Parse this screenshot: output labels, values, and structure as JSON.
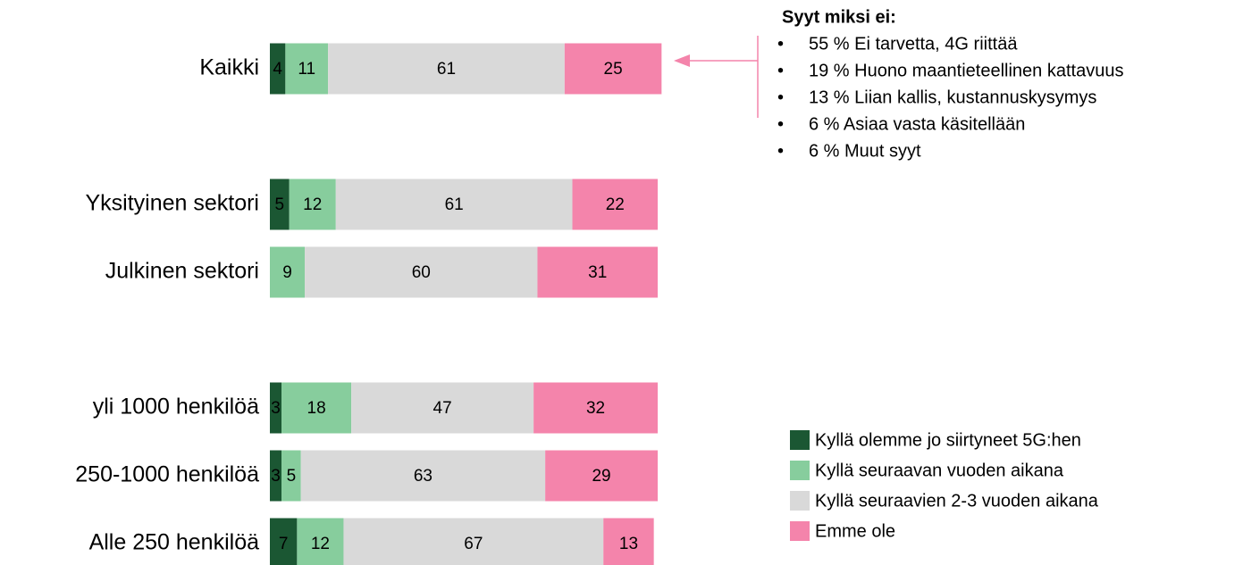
{
  "chart_data": {
    "type": "stacked-bar-horizontal",
    "categories": [
      "Kaikki",
      null,
      "Yksityinen sektori",
      "Julkinen sektori",
      null,
      "yli 1000 henkilöä",
      "250-1000 henkilöä",
      "Alle 250 henkilöä"
    ],
    "series": [
      {
        "name": "Kyllä olemme jo siirtyneet 5G:hen",
        "color": "#1b5733",
        "values": [
          4,
          null,
          5,
          0,
          null,
          3,
          3,
          7
        ]
      },
      {
        "name": "Kyllä seuraavan vuoden aikana",
        "color": "#87cd9d",
        "values": [
          11,
          null,
          12,
          9,
          null,
          18,
          5,
          12
        ]
      },
      {
        "name": "Kyllä seuraavien 2-3 vuoden aikana",
        "color": "#d9d9d9",
        "values": [
          61,
          null,
          61,
          60,
          null,
          47,
          63,
          67
        ]
      },
      {
        "name": "Emme ole",
        "color": "#f484ab",
        "values": [
          25,
          null,
          22,
          31,
          null,
          32,
          29,
          13
        ]
      }
    ],
    "xlim": [
      0,
      100
    ],
    "annotation": {
      "title": "Syyt miksi ei:",
      "items": [
        "55 % Ei tarvetta, 4G riittää",
        "19 % Huono maantieteellinen kattavuus",
        "13 % Liian kallis, kustannuskysymys",
        "6 % Asiaa vasta käsitellään",
        "6 % Muut syyt"
      ]
    }
  }
}
